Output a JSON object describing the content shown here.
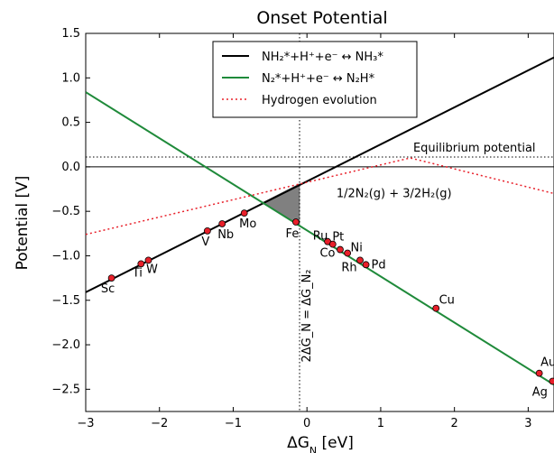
{
  "chart_data": {
    "type": "line",
    "title": "Onset Potential",
    "xlabel": "ΔG_N  [eV]",
    "ylabel": "Potential  [V]",
    "xlim": [
      -3,
      3.35
    ],
    "ylim": [
      -2.75,
      1.5
    ],
    "xticks": [
      -3,
      -2,
      -1,
      0,
      1,
      2,
      3
    ],
    "yticks": [
      -2.5,
      -2.0,
      -1.5,
      -1.0,
      -0.5,
      0.0,
      0.5,
      1.0,
      1.5
    ],
    "legend_position": "top-center",
    "series": [
      {
        "name": "NH₂*+H⁺+e⁻ ↔ NH₃*",
        "color": "#000000",
        "style": "solid",
        "points": [
          [
            -3,
            -1.41
          ],
          [
            3.35,
            1.23
          ]
        ]
      },
      {
        "name": "N₂*+H⁺+e⁻ ↔ N₂H*",
        "color": "#1f8a3a",
        "style": "solid",
        "points": [
          [
            -3,
            0.84
          ],
          [
            3.35,
            -2.45
          ]
        ]
      },
      {
        "name": "Hydrogen evolution",
        "color": "#e8202a",
        "style": "dotted",
        "points": [
          [
            -3,
            -0.76
          ],
          [
            1.4,
            0.1
          ],
          [
            3.35,
            -0.3
          ]
        ]
      }
    ],
    "reference_lines": {
      "equilibrium_y": 0.11,
      "zero_y": 0.0,
      "vertical_x": -0.1
    },
    "shaded_region": [
      [
        -0.6,
        -0.4
      ],
      [
        -0.1,
        -0.19
      ],
      [
        -0.1,
        -0.66
      ]
    ],
    "metals": [
      {
        "label": "Sc",
        "x": -2.65,
        "y": -1.25
      },
      {
        "label": "Ti",
        "x": -2.25,
        "y": -1.09
      },
      {
        "label": "W",
        "x": -2.15,
        "y": -1.05
      },
      {
        "label": "V",
        "x": -1.35,
        "y": -0.72
      },
      {
        "label": "Nb",
        "x": -1.15,
        "y": -0.64
      },
      {
        "label": "Mo",
        "x": -0.85,
        "y": -0.52
      },
      {
        "label": "Fe",
        "x": -0.15,
        "y": -0.62
      },
      {
        "label": "Ru",
        "x": 0.28,
        "y": -0.84
      },
      {
        "label": "Pt",
        "x": 0.35,
        "y": -0.87
      },
      {
        "label": "Co",
        "x": 0.45,
        "y": -0.93
      },
      {
        "label": "Ni",
        "x": 0.55,
        "y": -0.97
      },
      {
        "label": "Rh",
        "x": 0.72,
        "y": -1.05
      },
      {
        "label": "Pd",
        "x": 0.8,
        "y": -1.1
      },
      {
        "label": "Cu",
        "x": 1.75,
        "y": -1.59
      },
      {
        "label": "Au",
        "x": 3.15,
        "y": -2.32
      },
      {
        "label": "Ag",
        "x": 3.33,
        "y": -2.41
      }
    ],
    "annotations": {
      "equilibrium": "Equilibrium potential",
      "n2_h2": "1/2N₂(g) + 3/2H₂(g)",
      "vertical": "2ΔG_N = ΔG_N₂"
    }
  }
}
